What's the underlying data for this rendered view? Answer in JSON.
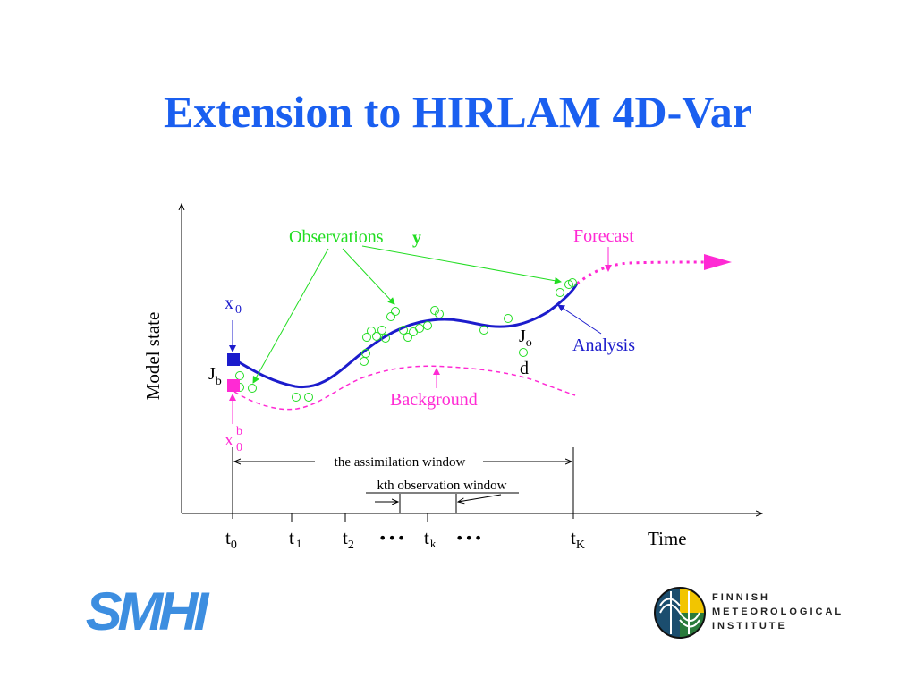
{
  "title": "Extension to HIRLAM 4D-Var",
  "diagram": {
    "ylabel": "Model state",
    "xlabel": "Time",
    "observations_label": "Observations",
    "observations_symbol": "y",
    "forecast_label": "Forecast",
    "analysis_label": "Analysis",
    "background_label": "Background",
    "x0_label": "x",
    "x0_sub": "0",
    "xb_label": "x",
    "xb_sup": "b",
    "xb_sub": "0",
    "jb_label": "J",
    "jb_sub": "b",
    "jo_label": "J",
    "jo_sub": "o",
    "d_label": "d",
    "window_label": "the assimilation window",
    "kth_window_label": "kth observation window",
    "ticks": {
      "t0": {
        "main": "t",
        "sub": "0"
      },
      "t1": {
        "main": "t",
        "sub": "1"
      },
      "t2": {
        "main": "t",
        "sub": "2"
      },
      "tk": {
        "main": "t",
        "sub": "k"
      },
      "tK": {
        "main": "t",
        "sub": "K"
      }
    },
    "ellipsis": "•••",
    "colors": {
      "analysis": "#1c1ccc",
      "background": "#ff2ad4",
      "observations": "#22dd22",
      "x0": "#1c1ccc",
      "xb": "#ff2ad4"
    }
  },
  "logos": {
    "smhi": "SMHI",
    "fmi_lines": [
      "FINNISH",
      "METEOROLOGICAL",
      "INSTITUTE"
    ]
  }
}
